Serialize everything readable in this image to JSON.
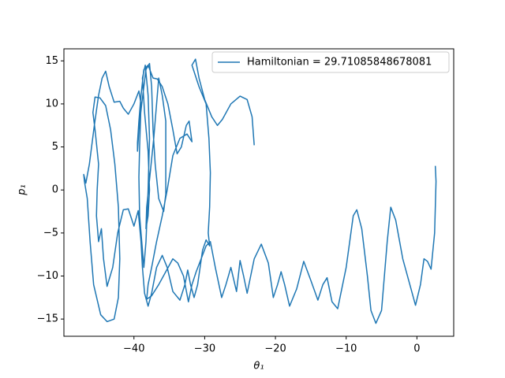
{
  "chart_data": {
    "type": "line",
    "xlabel": "θ₁",
    "ylabel": "p₁",
    "xlim": [
      -49.9,
      5.2
    ],
    "ylim": [
      -17,
      16.4
    ],
    "xticks": [
      {
        "value": -40,
        "label": "−40"
      },
      {
        "value": -30,
        "label": "−30"
      },
      {
        "value": -20,
        "label": "−20"
      },
      {
        "value": -10,
        "label": "−10"
      },
      0
    ],
    "yticks": [
      {
        "value": -15,
        "label": "−15"
      },
      {
        "value": -10,
        "label": "−10"
      },
      {
        "value": -5,
        "label": "−5"
      },
      0,
      5,
      10,
      15
    ],
    "legend": "upper right",
    "series": [
      {
        "name": "Hamiltonian = 29.71085848678081",
        "color": "#1f77b4",
        "x": [
          -23,
          -23.3,
          -24,
          -25,
          -26.3,
          -27.5,
          -28.2,
          -29,
          -30,
          -30.8,
          -31.3,
          -31.8,
          -30.8,
          -29.8,
          -29.4,
          -29.2,
          -29.3,
          -29.5,
          -29.3,
          -29.8,
          -30.3,
          -31,
          -31.5,
          -32,
          -32.4,
          -32.8,
          -33.5,
          -34.5,
          -35.3,
          -36,
          -36.8,
          -37.5,
          -38,
          -38.5,
          -38.8,
          -39,
          -39.4,
          -40,
          -40.8,
          -41.5,
          -42.3,
          -43,
          -43.8,
          -44.3,
          -44.6,
          -45,
          -45.3,
          -45.2,
          -45,
          -45.5,
          -45.8,
          -45.5,
          -44.8,
          -44,
          -43.3,
          -42.7,
          -42.2,
          -42,
          -42.2,
          -42.8,
          -43.8,
          -44.7,
          -45.7,
          -46.2,
          -46.6,
          -47,
          -47.1,
          -46.8,
          -46.3,
          -45.6,
          -45,
          -44.5,
          -44,
          -43.5,
          -42.8,
          -42,
          -41.5,
          -40.8,
          -40,
          -39.3,
          -39,
          -39.2,
          -39.3,
          -39.2,
          -38.8,
          -38.6,
          -38.3,
          -38,
          -37.8,
          -38,
          -38.4,
          -38.8,
          -38.5,
          -38,
          -37.8,
          -38,
          -38.3,
          -38.2,
          -37.7,
          -37.2,
          -36.8,
          -36.5,
          -36,
          -35.5,
          -35.5,
          -35.5,
          -35.8,
          -36.5,
          -37,
          -37.3,
          -37.5,
          -37.8,
          -38.3,
          -38.9,
          -39.3,
          -39.5,
          -39.5,
          -39.3,
          -39,
          -38.6,
          -38,
          -37.3,
          -36.7,
          -36,
          -35.2,
          -34.5,
          -33.9,
          -33.3,
          -32.6,
          -32.2,
          -31.8,
          -32.5,
          -33.5,
          -34.5,
          -35.3,
          -36,
          -36.8,
          -37.5,
          -38,
          -38.2,
          -37.5,
          -36.5,
          -35.5,
          -34.5,
          -33.8,
          -33,
          -32.3,
          -31.8,
          -31.2,
          -30.5,
          -29.8,
          -29.2,
          -28.5,
          -27.6,
          -27,
          -26.3,
          -25.5,
          -25,
          -24.5,
          -24,
          -23,
          -22,
          -21,
          -20.3,
          -19.7,
          -19.2,
          -18.7,
          -18,
          -17,
          -16,
          -15,
          -14,
          -13.3,
          -12.7,
          -12,
          -11.2,
          -10,
          -9,
          -8.5,
          -7.8,
          -7,
          -6.5,
          -5.8,
          -5,
          -4.2,
          -3.7,
          -3,
          -2,
          -1,
          -0.2,
          0.5,
          1,
          1.5,
          2,
          2.5,
          2.7,
          2.6
        ],
        "values": [
          5.2,
          8.5,
          10.5,
          10.9,
          10,
          8.2,
          7.5,
          8.5,
          10.5,
          13,
          15.2,
          14.5,
          12,
          10,
          6,
          2,
          -2,
          -5,
          -6.5,
          -5.8,
          -7,
          -11,
          -12.5,
          -11,
          -9.3,
          -11,
          -12.8,
          -11.8,
          -9,
          -7.6,
          -9,
          -12,
          -13.5,
          -12,
          -9,
          -6,
          -2.4,
          -4.2,
          -2.2,
          -2.3,
          -5,
          -9,
          -11.2,
          -8,
          -4.5,
          -6,
          -3,
          0,
          3,
          7,
          9,
          10.8,
          10.7,
          9.8,
          7,
          3,
          -2,
          -8,
          -12.5,
          -15,
          -15.3,
          -14.5,
          -11,
          -6,
          -1,
          1,
          1.8,
          0.8,
          3,
          7.5,
          11,
          13,
          13.8,
          12,
          10.2,
          10.3,
          9.5,
          8.8,
          10,
          11.5,
          10,
          5,
          1.5,
          -3,
          -7,
          -9,
          -6,
          0,
          6,
          11,
          14.5,
          13,
          9,
          4.5,
          0,
          -3,
          -4.5,
          -2,
          2,
          6,
          10,
          13,
          11,
          8,
          3,
          -0.5,
          -2.5,
          -1,
          3,
          7,
          12,
          14.7,
          14,
          10,
          7,
          4.5,
          5.5,
          8,
          11,
          14,
          14.5,
          13,
          12.9,
          12,
          10,
          7,
          4.2,
          5,
          7.5,
          8,
          5.6,
          6.5,
          6,
          4,
          0,
          -3,
          -6,
          -9,
          -11,
          -12.7,
          -12.3,
          -11,
          -9.5,
          -8,
          -8.5,
          -10,
          -13,
          -11,
          -9.5,
          -8,
          -6.5,
          -6,
          -9,
          -12.5,
          -11,
          -9,
          -11.8,
          -8.2,
          -10,
          -12,
          -8,
          -6.3,
          -8.5,
          -12.5,
          -11,
          -9.5,
          -11,
          -13.5,
          -11.5,
          -8.3,
          -10.5,
          -12.8,
          -11,
          -10.2,
          -13,
          -13.8,
          -9,
          -3,
          -2.3,
          -4.5,
          -10,
          -14,
          -15.5,
          -14,
          -6,
          -2,
          -3.5,
          -8,
          -11,
          -13.4,
          -11,
          -8,
          -8.3,
          -9.2,
          -5,
          1,
          2.8
        ]
      }
    ]
  }
}
